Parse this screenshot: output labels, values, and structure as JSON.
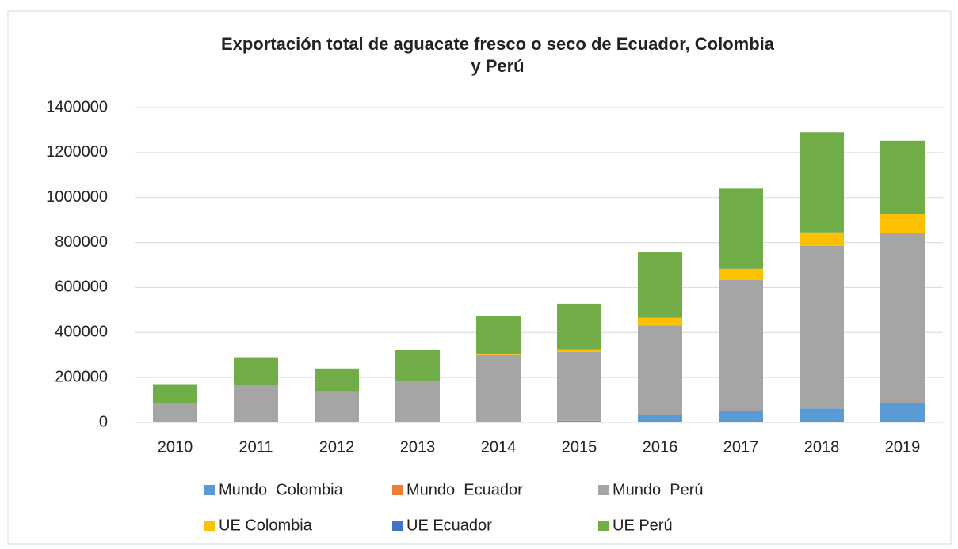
{
  "chart_data": {
    "type": "stacked_bar",
    "title": "Exportación total de aguacate fresco o seco de Ecuador, Colombia y Perú",
    "categories": [
      "2010",
      "2011",
      "2012",
      "2013",
      "2014",
      "2015",
      "2016",
      "2017",
      "2018",
      "2019"
    ],
    "series": [
      {
        "name": "Mundo  Colombia",
        "color": "#5b9bd5",
        "values": [
          2000,
          2000,
          2000,
          2000,
          3000,
          8000,
          33000,
          50000,
          62000,
          88000
        ]
      },
      {
        "name": "Mundo  Ecuador",
        "color": "#ed7d31",
        "values": [
          0,
          0,
          0,
          0,
          0,
          0,
          0,
          0,
          0,
          0
        ]
      },
      {
        "name": "Mundo  Perú",
        "color": "#a5a5a5",
        "values": [
          83000,
          160000,
          135000,
          181000,
          297000,
          305000,
          398000,
          583000,
          723000,
          755000
        ]
      },
      {
        "name": "UE Colombia",
        "color": "#ffc000",
        "values": [
          0,
          1000,
          1000,
          2000,
          5000,
          12000,
          35000,
          50000,
          60000,
          82000
        ]
      },
      {
        "name": "UE Ecuador",
        "color": "#4472c4",
        "values": [
          0,
          0,
          0,
          0,
          0,
          0,
          0,
          0,
          0,
          0
        ]
      },
      {
        "name": "UE Perú",
        "color": "#70ad47",
        "values": [
          82000,
          127000,
          102000,
          138000,
          167000,
          203000,
          290000,
          357000,
          445000,
          328000
        ]
      }
    ],
    "ylim": [
      0,
      1400000
    ],
    "yticks": [
      0,
      200000,
      400000,
      600000,
      800000,
      1000000,
      1200000,
      1400000
    ],
    "grid": true
  }
}
